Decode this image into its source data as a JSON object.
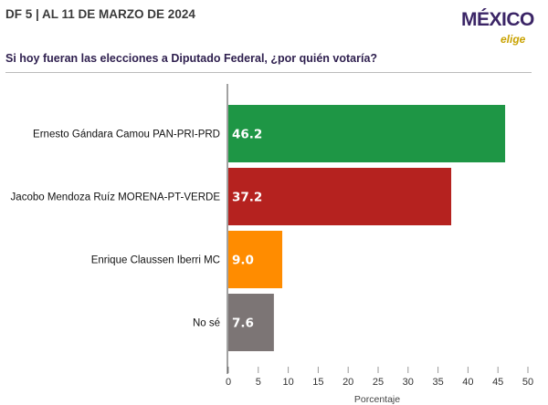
{
  "header": {
    "title": "DF 5 | AL 11 DE MARZO DE 2024",
    "logo_main": "MÉXICO",
    "logo_sub": "elige",
    "subtitle": "Si hoy fueran las elecciones a Diputado Federal, ¿por quién votaría?"
  },
  "chart_data": {
    "type": "bar",
    "orientation": "horizontal",
    "categories": [
      "Ernesto Gándara Camou PAN-PRI-PRD",
      "Jacobo Mendoza Ruíz MORENA-PT-VERDE",
      "Enrique Claussen Iberri MC",
      "No sé"
    ],
    "values": [
      46.2,
      37.2,
      9.0,
      7.6
    ],
    "labels": [
      "46.2",
      "37.2",
      "9.0",
      "7.6"
    ],
    "colors": [
      "#1e9645",
      "#b5221f",
      "#ff8c00",
      "#7c7575"
    ],
    "xlabel": "Porcentaje",
    "xlim": [
      0,
      50
    ],
    "xticks": [
      0,
      5,
      10,
      15,
      20,
      25,
      30,
      35,
      40,
      45,
      50
    ],
    "grid": false
  }
}
